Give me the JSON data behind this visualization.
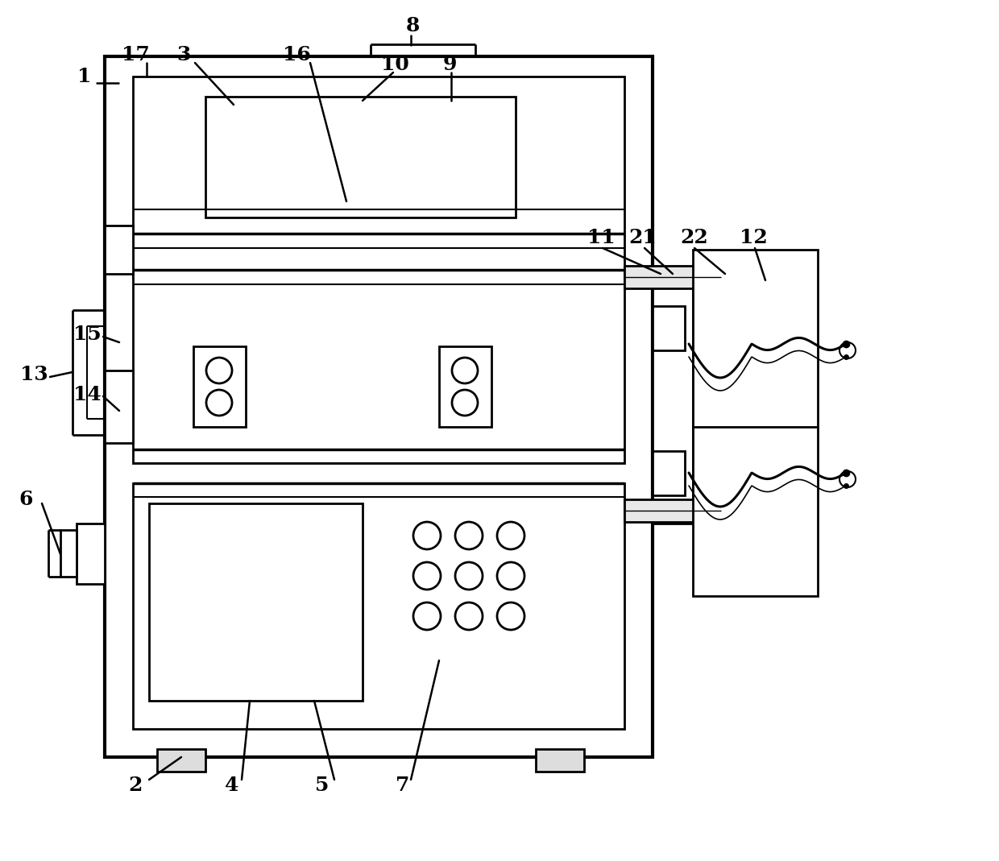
{
  "bg_color": "#ffffff",
  "lc": "#000000",
  "lw": 2.0,
  "fig_w": 12.4,
  "fig_h": 10.69
}
